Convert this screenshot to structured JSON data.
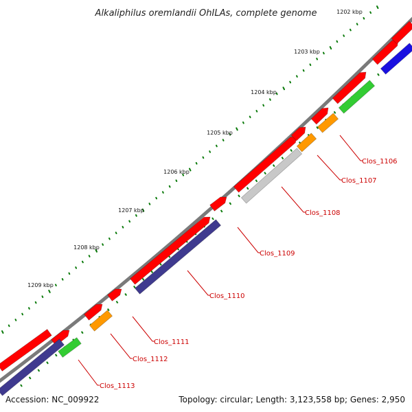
{
  "title": "Alkaliphilus oremlandii OhILAs, complete genome",
  "accession": "Accession: NC_009922",
  "topology": "Topology: circular; Length: 3,123,558 bp; Genes: 2,950",
  "colors": {
    "forward": "#ff0000",
    "reverse_purple": "#3f3a8f",
    "reverse_blue": "#1a10e0",
    "green": "#33cc33",
    "orange": "#ff9900",
    "gray": "#c8c8c8",
    "backbone": "#808080",
    "tick": "#0a7a0a",
    "label": "#cc0000"
  },
  "ruler_labels": [
    "1202 kbp",
    "1203 kbp",
    "1204 kbp",
    "1205 kbp",
    "1206 kbp",
    "1207 kbp",
    "1208 kbp",
    "1209 kbp"
  ],
  "gene_labels": [
    "Clos_1106",
    "Clos_1107",
    "Clos_1108",
    "Clos_1109",
    "Clos_1110",
    "Clos_1111",
    "Clos_1112",
    "Clos_1113"
  ]
}
